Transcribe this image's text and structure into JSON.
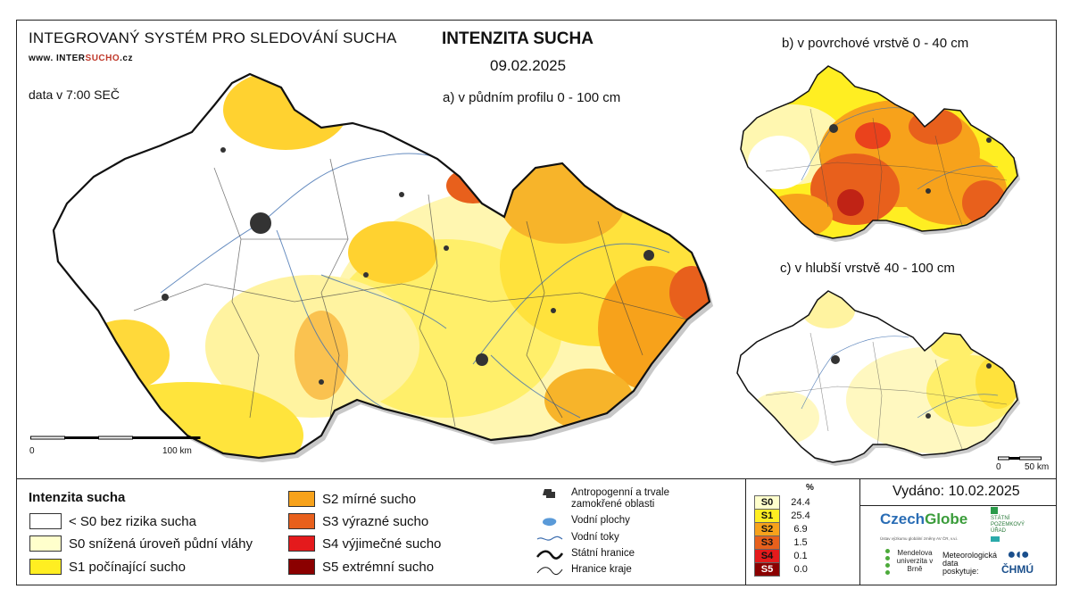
{
  "header": {
    "system_title": "INTEGROVANÝ SYSTÉM PRO SLEDOVÁNÍ SUCHA",
    "url_prefix": "www. INTER",
    "url_highlight": "SUCHO",
    "url_suffix": ".cz",
    "data_time": "data v 7:00 SEČ",
    "main_title": "INTENZITA SUCHA",
    "date": "09.02.2025"
  },
  "maps": {
    "a_label": "a) v půdním profilu 0 - 100 cm",
    "b_label": "b) v povrchové vrstvě 0 - 40 cm",
    "c_label": "c) v hlubší vrstvě 40 - 100 cm"
  },
  "scales": {
    "main": {
      "start": "0",
      "end": "100 km"
    },
    "small": {
      "start": "0",
      "end": "50 km"
    }
  },
  "legend": {
    "title": "Intenzita sucha",
    "classes": [
      {
        "label": "< S0 bez rizika sucha",
        "color": "#ffffff"
      },
      {
        "label": "S0 snížená úroveň půdní vláhy",
        "color": "#ffffcc"
      },
      {
        "label": "S1 počínající sucho",
        "color": "#ffee22"
      },
      {
        "label": "S2 mírné sucho",
        "color": "#f7a21b"
      },
      {
        "label": "S3 výrazné sucho",
        "color": "#e8601c"
      },
      {
        "label": "S4 výjimečné sucho",
        "color": "#e41a1c"
      },
      {
        "label": "S5 extrémní sucho",
        "color": "#8b0000"
      }
    ],
    "symbols": [
      {
        "label": "Antropogenní a trvale zamokřené oblasti",
        "icon": "urban-area-icon"
      },
      {
        "label": "Vodní plochy",
        "icon": "water-body-icon"
      },
      {
        "label": "Vodní toky",
        "icon": "river-icon"
      },
      {
        "label": "Státní hranice",
        "icon": "state-border-icon"
      },
      {
        "label": "Hranice kraje",
        "icon": "region-border-icon"
      }
    ]
  },
  "stats": {
    "header": "%",
    "rows": [
      {
        "cls": "S0",
        "value": "24.4",
        "color": "#ffffcc"
      },
      {
        "cls": "S1",
        "value": "25.4",
        "color": "#ffee22"
      },
      {
        "cls": "S2",
        "value": "6.9",
        "color": "#f7a21b"
      },
      {
        "cls": "S3",
        "value": "1.5",
        "color": "#e8601c"
      },
      {
        "cls": "S4",
        "value": "0.1",
        "color": "#e41a1c"
      },
      {
        "cls": "S5",
        "value": "0.0",
        "color": "#8b0000"
      }
    ]
  },
  "footer": {
    "issued": "Vydáno: 10.02.2025",
    "czechglobe_a": "Czech",
    "czechglobe_b": "Globe",
    "czechglobe_sub": "Ústav výzkumu globální změny AV ČR, v.v.i.",
    "spu": "STÁTNÍ POZEMKOVÝ ÚŘAD",
    "mendel": "Mendelova univerzita v Brně",
    "met_data": "Meteorologická data poskytuje:",
    "chmu": "ČHMÚ"
  }
}
